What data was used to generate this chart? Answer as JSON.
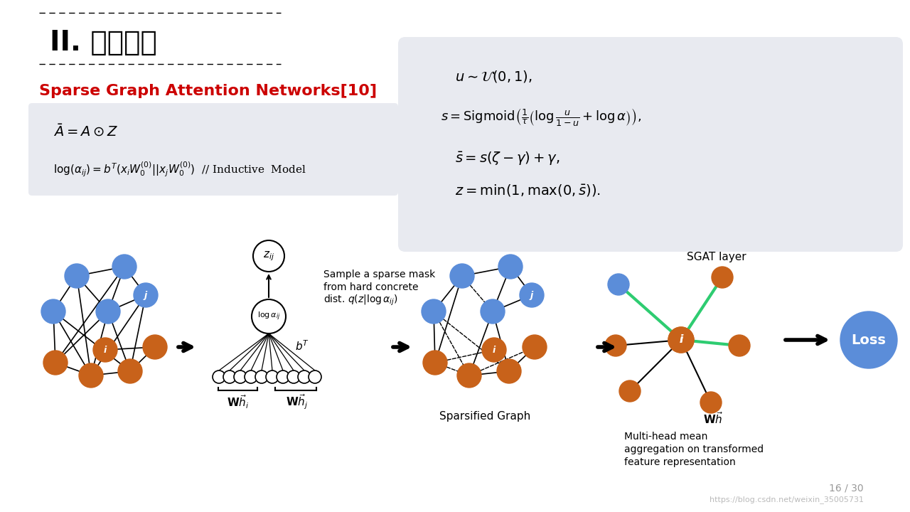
{
  "bg_color": "#ffffff",
  "title_text": "II. 相关工作",
  "red_title": "Sparse Graph Attention Networks[10]",
  "eq_box_color": "#e8eaf0",
  "right_box_color": "#e8eaf0",
  "eq1": "$\\bar{A} = A \\odot Z$",
  "eq2": "$\\log(\\alpha_{ij}) = b^T(x_i W_0^{(0)} || x_j W_0^{(0)})$  // Inductive  Model",
  "right_eq1": "$u \\sim \\mathcal{U}(0,1),$",
  "right_eq2": "$s = \\mathrm{Sigmoid}\\left(\\frac{1}{\\tau}\\left(\\log\\frac{u}{1-u} + \\log\\alpha\\right)\\right),$",
  "right_eq3": "$\\bar{s} = s(\\zeta - \\gamma) + \\gamma,$",
  "right_eq4": "$z = \\min(1, \\max(0, \\bar{s})).$",
  "page_num": "16 / 30",
  "watermark": "https://blog.csdn.net/weixin_35005731",
  "node_blue": "#5b8dd9",
  "node_orange": "#c8621a",
  "arrow_color": "#000000",
  "green_line": "#2ecc71",
  "loss_blue": "#5b8dd9",
  "loss_text": "Loss"
}
